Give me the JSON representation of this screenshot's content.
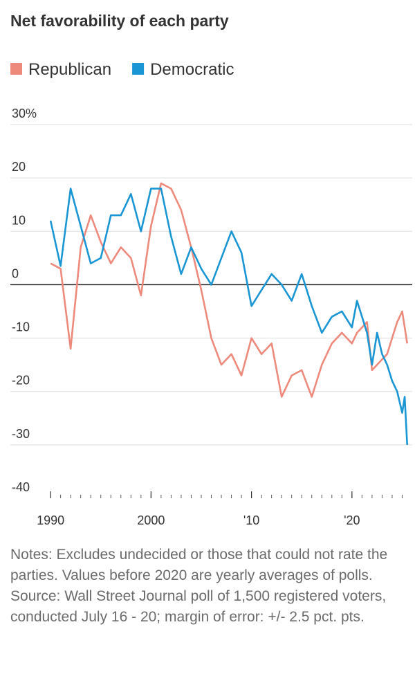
{
  "chart_data": {
    "type": "line",
    "title": "Net favorability of each party",
    "series": [
      {
        "name": "Republican",
        "color": "#ee8a7b",
        "x": [
          1990,
          1991,
          1992,
          1993,
          1994,
          1995,
          1996,
          1997,
          1998,
          1999,
          2000,
          2001,
          2002,
          2003,
          2004,
          2005,
          2006,
          2007,
          2008,
          2009,
          2010,
          2011,
          2012,
          2013,
          2014,
          2015,
          2016,
          2017,
          2018,
          2019,
          2020,
          2020.5,
          2021,
          2021.5,
          2022,
          2022.5,
          2023,
          2023.5,
          2024,
          2024.5,
          2025,
          2025.25,
          2025.5
        ],
        "values": [
          4,
          3,
          -12,
          7,
          13,
          8,
          4,
          7,
          5,
          -2,
          11,
          19,
          18,
          14,
          7,
          -1,
          -10,
          -15,
          -13,
          -17,
          -10,
          -13,
          -11,
          -21,
          -17,
          -16,
          -21,
          -15,
          -11,
          -9,
          -11,
          -9,
          -8,
          -7,
          -16,
          -15,
          -14,
          -13,
          -10,
          -7,
          -5,
          -8,
          -11
        ]
      },
      {
        "name": "Democratic",
        "color": "#1a96d4",
        "x": [
          1990,
          1991,
          1992,
          1993,
          1994,
          1995,
          1996,
          1997,
          1998,
          1999,
          2000,
          2001,
          2002,
          2003,
          2004,
          2005,
          2006,
          2007,
          2008,
          2009,
          2010,
          2011,
          2012,
          2013,
          2014,
          2015,
          2016,
          2017,
          2018,
          2019,
          2020,
          2020.5,
          2021,
          2021.5,
          2022,
          2022.5,
          2023,
          2023.5,
          2024,
          2024.5,
          2025,
          2025.25,
          2025.5
        ],
        "values": [
          12,
          3.5,
          18,
          11,
          4,
          5,
          13,
          13,
          17,
          10,
          18,
          18,
          9,
          2,
          7,
          3,
          0,
          5,
          10,
          6,
          -4,
          -1,
          2,
          0,
          -3,
          2,
          -4,
          -9,
          -6,
          -5,
          -8,
          -3,
          -6,
          -9,
          -15,
          -9,
          -13,
          -15,
          -18,
          -20,
          -24,
          -21,
          -30
        ]
      }
    ],
    "xlim": [
      1986,
      2026
    ],
    "xticks": [
      1990,
      2000,
      {
        "value": 2010,
        "label": "'10"
      },
      {
        "value": 2020,
        "label": "'20"
      }
    ],
    "xminor": [
      1990,
      1991,
      1992,
      1993,
      1994,
      1995,
      1996,
      1997,
      1998,
      1999,
      2000,
      2001,
      2002,
      2003,
      2004,
      2005,
      2006,
      2007,
      2008,
      2009,
      2010,
      2011,
      2012,
      2013,
      2014,
      2015,
      2016,
      2017,
      2018,
      2019,
      2020,
      2021,
      2022,
      2023,
      2024,
      2025
    ],
    "ylim": [
      -40,
      30
    ],
    "yticks": [
      {
        "value": 30,
        "label": "30%"
      },
      20,
      10,
      0,
      -10,
      -20,
      -30,
      -40
    ],
    "grid": true,
    "legend": "top-left",
    "notes": "Notes: Excludes undecided or those that could not rate the parties. Values before 2020 are yearly averages of polls.",
    "source": "Source: Wall Street Journal poll of 1,500 registered voters, conducted July 16 - 20; margin of error: +/- 2.5 pct. pts."
  }
}
